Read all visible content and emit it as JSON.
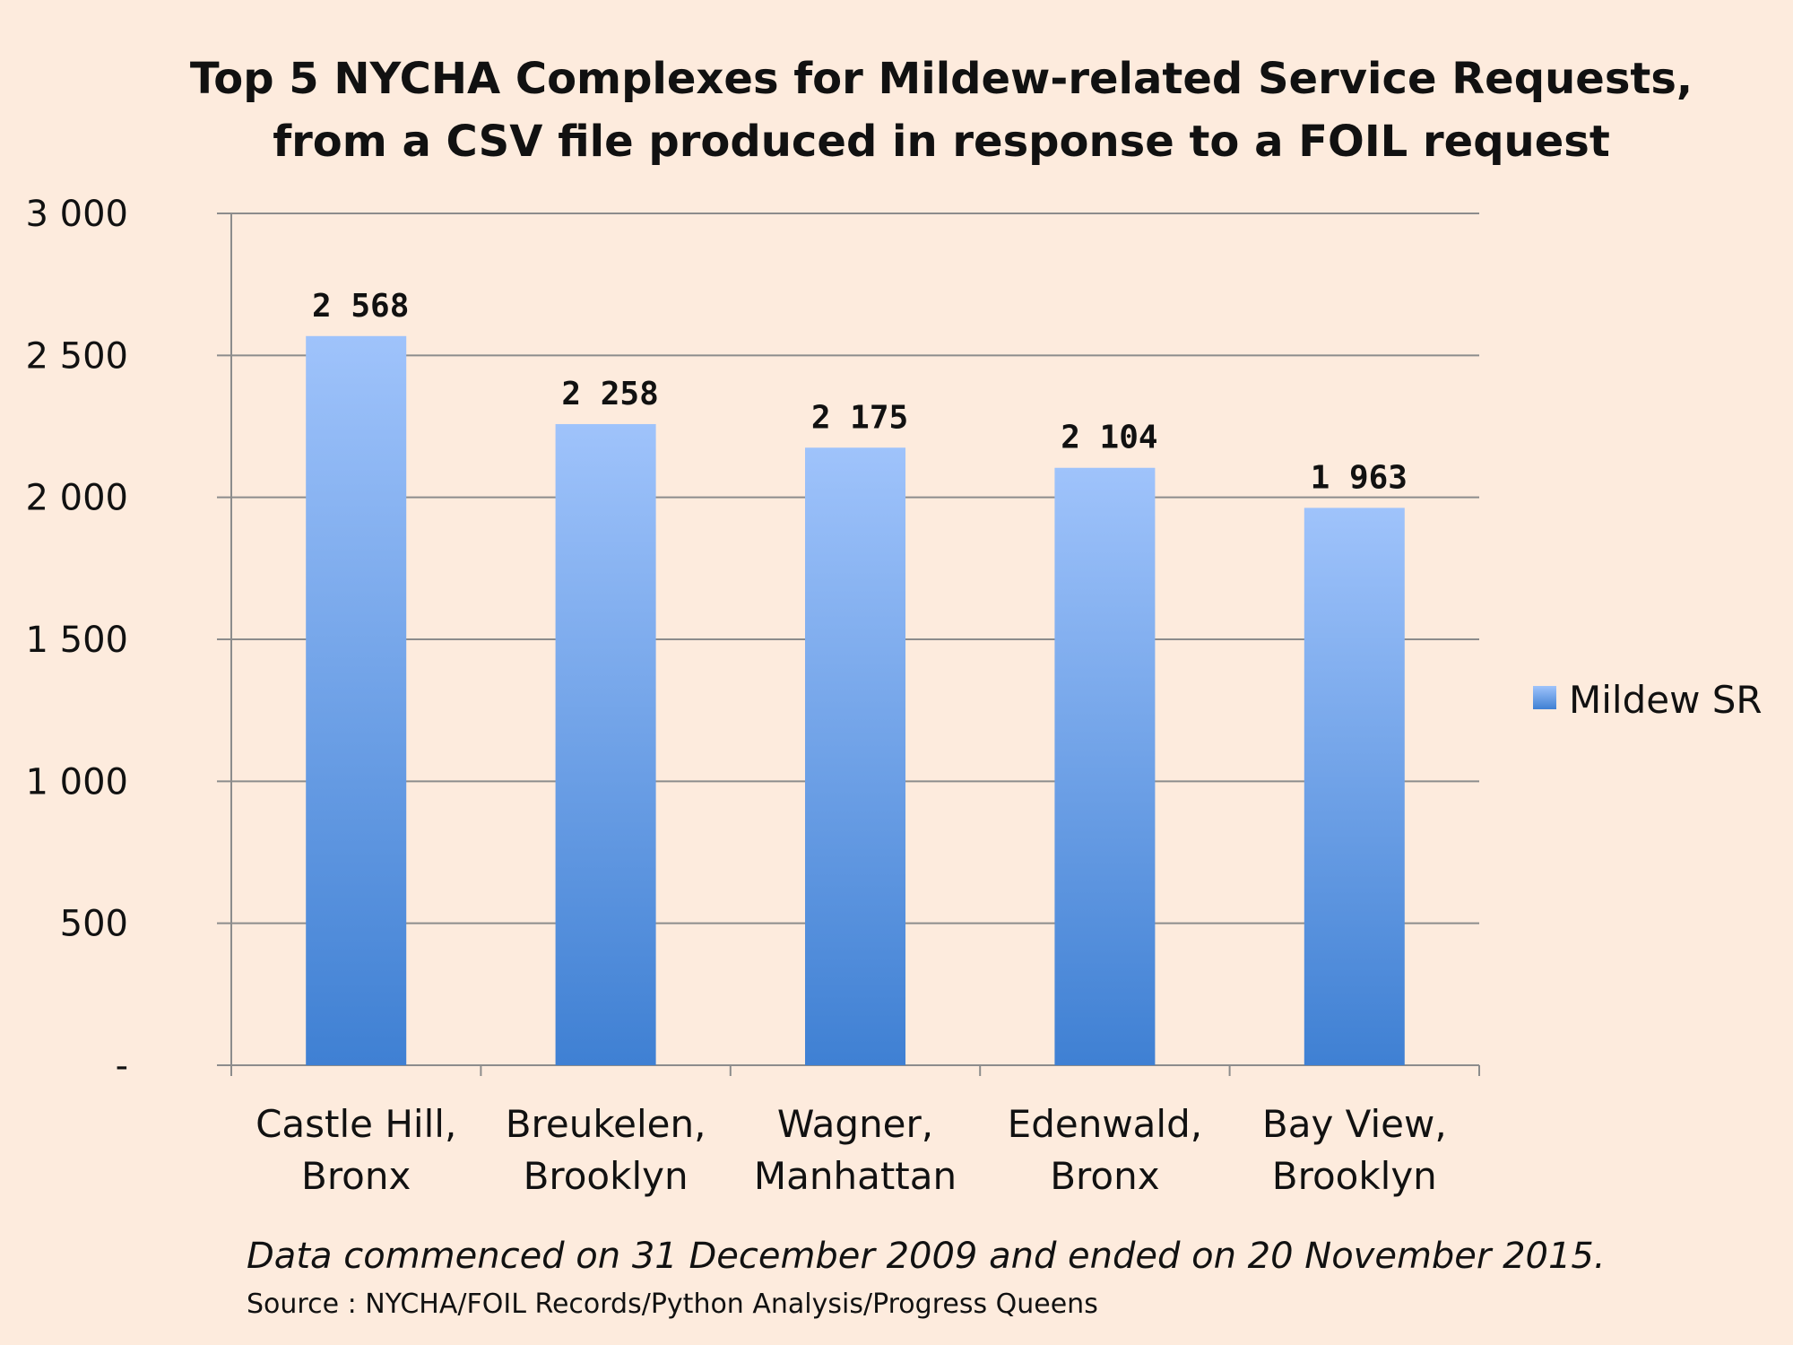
{
  "chart_data": {
    "type": "bar",
    "title": "Top 5 NYCHA Complexes for Mildew-related Service Requests,",
    "subtitle": "from a CSV file produced in response to a FOIL request",
    "categories": [
      [
        "Castle Hill,",
        "Bronx"
      ],
      [
        "Breukelen,",
        "Brooklyn"
      ],
      [
        "Wagner,",
        "Manhattan"
      ],
      [
        "Edenwald,",
        "Bronx"
      ],
      [
        "Bay View,",
        "Brooklyn"
      ]
    ],
    "series": [
      {
        "name": "Mildew SR",
        "values": [
          2568,
          2258,
          2175,
          2104,
          1963
        ]
      }
    ],
    "value_labels": [
      "2 568",
      "2 258",
      "2 175",
      "2 104",
      "1 963"
    ],
    "ylim": [
      0,
      3000
    ],
    "yticks": [
      0,
      500,
      1000,
      1500,
      2000,
      2500,
      3000
    ],
    "ytick_labels": [
      "-",
      "500",
      "1 000",
      "1 500",
      "2 000",
      "2 500",
      "3 000"
    ],
    "grid": true,
    "legend_position": "right",
    "bar_gradient": [
      "#9fc3fb",
      "#3f80d3"
    ]
  },
  "footnote": "Data commenced on 31 December 2009 and ended on 20 November 2015.",
  "source": "Source : NYCHA/FOIL Records/Python Analysis/Progress Queens"
}
